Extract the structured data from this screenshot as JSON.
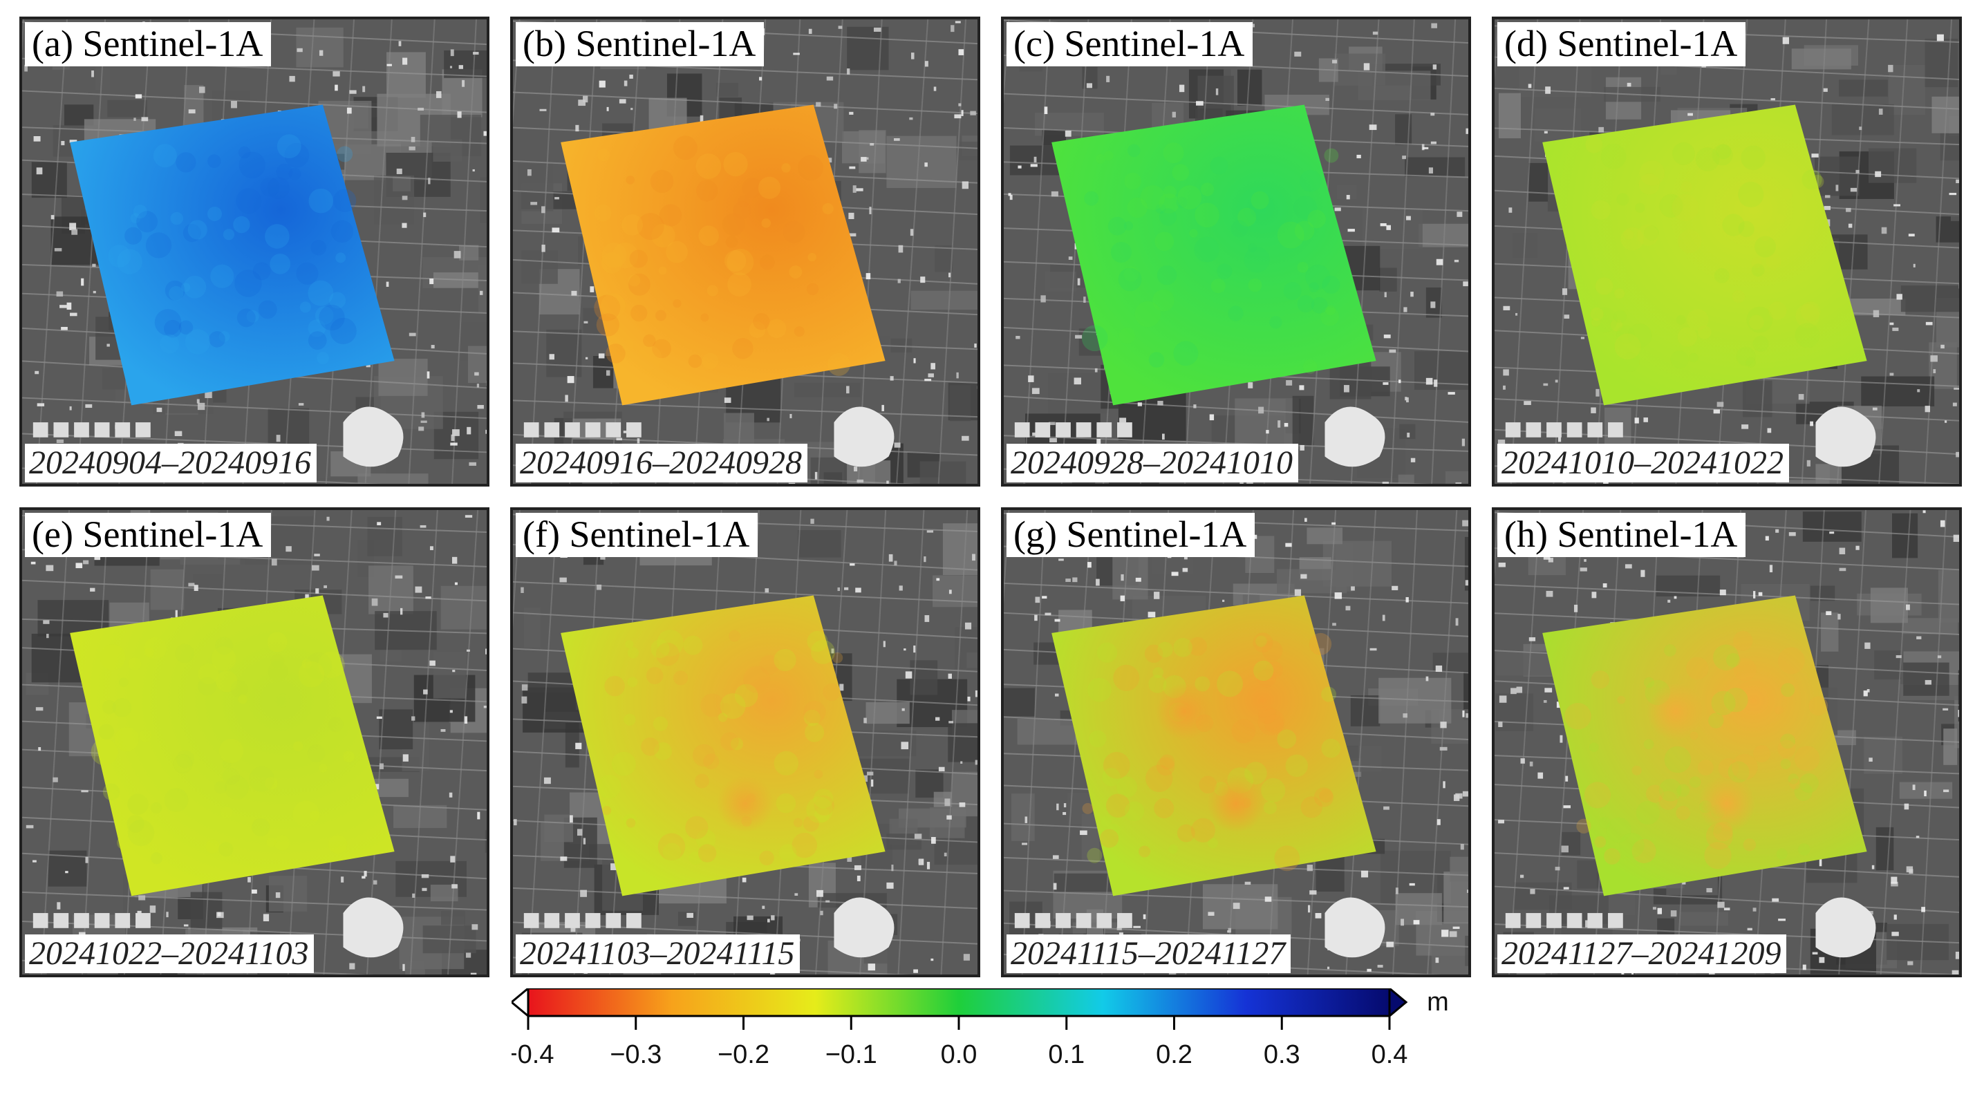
{
  "panels": [
    {
      "title": "(a) Sentinel-1A",
      "dates": "20240904–20240916",
      "fill": "#2aa4ec",
      "accent": "#1566d8",
      "blobs": []
    },
    {
      "title": "(b) Sentinel-1A",
      "dates": "20240916–20240928",
      "fill": "#f7b52c",
      "accent": "#f08a1e",
      "blobs": []
    },
    {
      "title": "(c) Sentinel-1A",
      "dates": "20240928–20241010",
      "fill": "#4fe23c",
      "accent": "#2fd85a",
      "blobs": []
    },
    {
      "title": "(d) Sentinel-1A",
      "dates": "20241010–20241022",
      "fill": "#a9e42c",
      "accent": "#c8e02a",
      "blobs": []
    },
    {
      "title": "(e) Sentinel-1A",
      "dates": "20241022–20241103",
      "fill": "#d0e624",
      "accent": "#bfe02a",
      "blobs": []
    },
    {
      "title": "(f) Sentinel-1A",
      "dates": "20241103–20241115",
      "fill": "#c8e428",
      "accent": "#efa832",
      "blobs": [
        "lower"
      ]
    },
    {
      "title": "(g) Sentinel-1A",
      "dates": "20241115–20241127",
      "fill": "#b6e22c",
      "accent": "#f2a030",
      "blobs": [
        "upper",
        "lower"
      ]
    },
    {
      "title": "(h) Sentinel-1A",
      "dates": "20241127–20241209",
      "fill": "#a8e02e",
      "accent": "#f0ae38",
      "blobs": [
        "upper",
        "lower"
      ]
    }
  ],
  "colorbar": {
    "unit": "m",
    "ticks": [
      "−0.4",
      "−0.3",
      "−0.2",
      "−0.1",
      "0.0",
      "0.1",
      "0.2",
      "0.3",
      "0.4"
    ],
    "colors": [
      "#e8141c",
      "#f7a21b",
      "#e6ec1a",
      "#1fcf3a",
      "#12cbe8",
      "#1533d6",
      "#050a6e"
    ]
  }
}
